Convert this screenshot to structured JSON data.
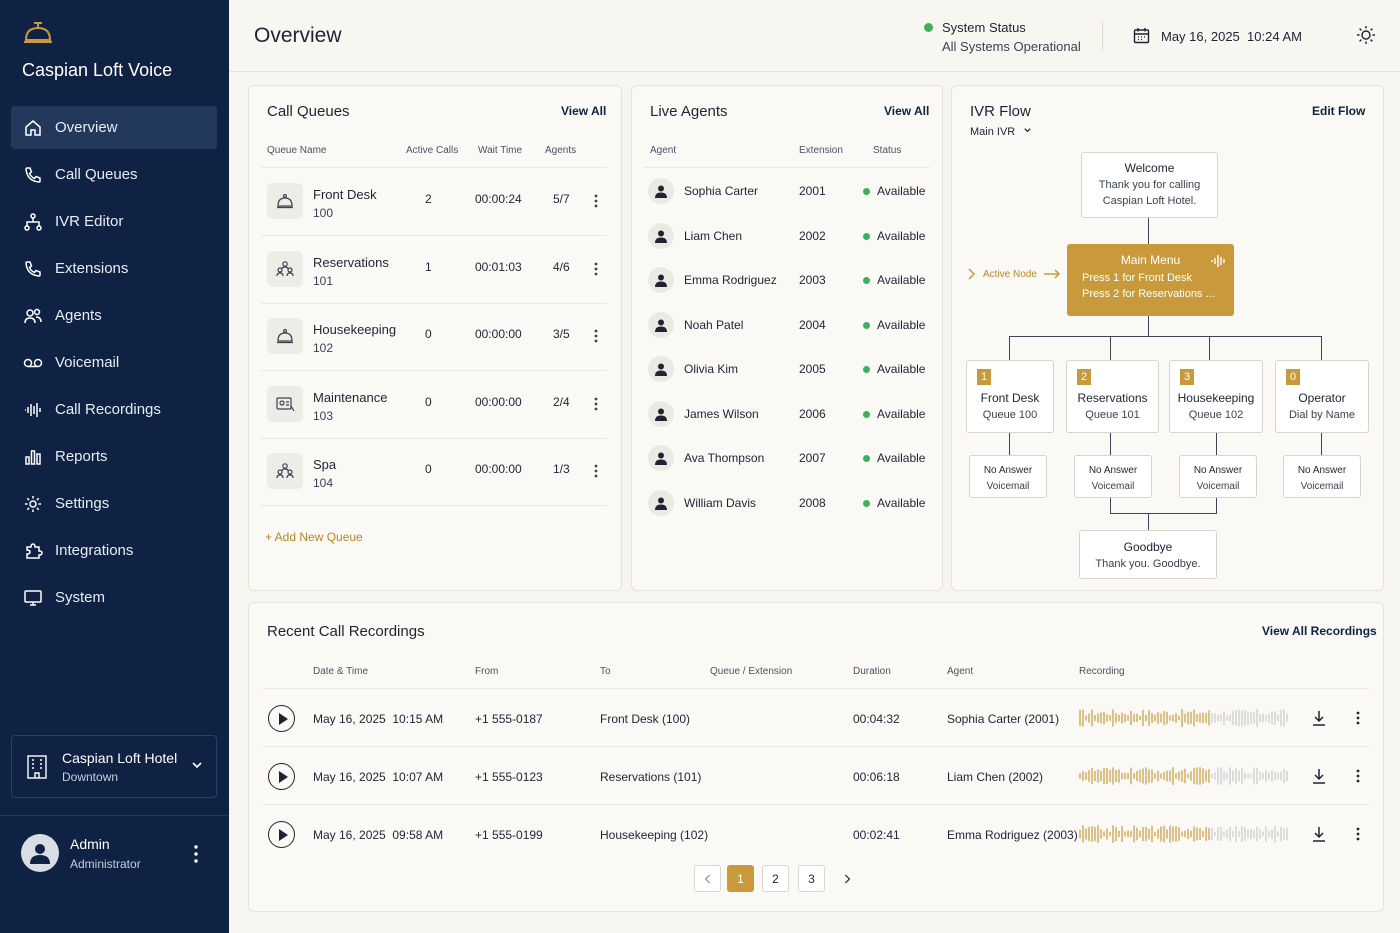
{
  "app": {
    "brand": "Caspian Loft Voice"
  },
  "nav": [
    {
      "label": "Overview",
      "icon": "home-icon",
      "active": true
    },
    {
      "label": "Call Queues",
      "icon": "phone-icon"
    },
    {
      "label": "IVR Editor",
      "icon": "flow-icon"
    },
    {
      "label": "Extensions",
      "icon": "phone-icon"
    },
    {
      "label": "Agents",
      "icon": "users-icon"
    },
    {
      "label": "Voicemail",
      "icon": "voicemail-icon"
    },
    {
      "label": "Call Recordings",
      "icon": "waveform-icon"
    },
    {
      "label": "Reports",
      "icon": "bar-chart-icon"
    },
    {
      "label": "Settings",
      "icon": "gear-icon"
    },
    {
      "label": "Integrations",
      "icon": "puzzle-icon"
    },
    {
      "label": "System",
      "icon": "monitor-icon"
    }
  ],
  "hotel": {
    "name": "Caspian Loft Hotel",
    "location": "Downtown"
  },
  "user": {
    "name": "Admin",
    "role": "Administrator"
  },
  "header": {
    "title": "Overview",
    "status_title": "System Status",
    "status_text": "All Systems Operational",
    "date": "May 16, 2025",
    "time": "10:24 AM"
  },
  "queues": {
    "title": "Call Queues",
    "view_all": "View All",
    "columns": [
      "Queue Name",
      "Active Calls",
      "Wait Time",
      "Agents"
    ],
    "rows": [
      {
        "name": "Front Desk",
        "number": "100",
        "active": "2",
        "wait": "00:00:24",
        "agents": "5/7",
        "icon": "bell-icon"
      },
      {
        "name": "Reservations",
        "number": "101",
        "active": "1",
        "wait": "00:01:03",
        "agents": "4/6",
        "icon": "group-icon"
      },
      {
        "name": "Housekeeping",
        "number": "102",
        "active": "0",
        "wait": "00:00:00",
        "agents": "3/5",
        "icon": "bell-icon"
      },
      {
        "name": "Maintenance",
        "number": "103",
        "active": "0",
        "wait": "00:00:00",
        "agents": "2/4",
        "icon": "tools-icon"
      },
      {
        "name": "Spa",
        "number": "104",
        "active": "0",
        "wait": "00:00:00",
        "agents": "1/3",
        "icon": "group-icon"
      }
    ],
    "add_label": "+ Add New Queue"
  },
  "agents": {
    "title": "Live Agents",
    "view_all": "View All",
    "columns": [
      "Agent",
      "Extension",
      "Status"
    ],
    "rows": [
      {
        "name": "Sophia Carter",
        "ext": "2001",
        "status": "Available"
      },
      {
        "name": "Liam Chen",
        "ext": "2002",
        "status": "Available"
      },
      {
        "name": "Emma Rodriguez",
        "ext": "2003",
        "status": "Available"
      },
      {
        "name": "Noah Patel",
        "ext": "2004",
        "status": "Available"
      },
      {
        "name": "Olivia Kim",
        "ext": "2005",
        "status": "Available"
      },
      {
        "name": "James Wilson",
        "ext": "2006",
        "status": "Available"
      },
      {
        "name": "Ava Thompson",
        "ext": "2007",
        "status": "Available"
      },
      {
        "name": "William Davis",
        "ext": "2008",
        "status": "Available"
      }
    ]
  },
  "ivr": {
    "title": "IVR Flow",
    "edit": "Edit Flow",
    "selector": "Main IVR",
    "welcome": {
      "title": "Welcome",
      "line1": "Thank you for calling",
      "line2": "Caspian Loft Hotel."
    },
    "active_node": "Active Node",
    "main_menu": {
      "title": "Main Menu",
      "line1": "Press 1 for Front Desk",
      "line2": "Press 2 for Reservations ..."
    },
    "options": [
      {
        "key": "1",
        "title": "Front Desk",
        "sub": "Queue 100"
      },
      {
        "key": "2",
        "title": "Reservations",
        "sub": "Queue 101"
      },
      {
        "key": "3",
        "title": "Housekeeping",
        "sub": "Queue 102"
      },
      {
        "key": "0",
        "title": "Operator",
        "sub": "Dial by Name"
      }
    ],
    "fallback": {
      "title": "No Answer",
      "sub": "Voicemail"
    },
    "goodbye": {
      "title": "Goodbye",
      "line1": "Thank you. Goodbye."
    }
  },
  "recordings": {
    "title": "Recent Call Recordings",
    "view_all": "View All Recordings",
    "columns": [
      "Date & Time",
      "From",
      "To",
      "Queue / Extension",
      "Duration",
      "Agent",
      "Recording"
    ],
    "rows": [
      {
        "datetime": "May 16, 2025  10:15 AM",
        "from": "+1 555-0187",
        "to": "Front Desk (100)",
        "duration": "00:04:32",
        "agent": "Sophia Carter (2001)"
      },
      {
        "datetime": "May 16, 2025  10:07 AM",
        "from": "+1 555-0123",
        "to": "Reservations (101)",
        "duration": "00:06:18",
        "agent": "Liam Chen (2002)"
      },
      {
        "datetime": "May 16, 2025  09:58 AM",
        "from": "+1 555-0199",
        "to": "Housekeeping (102)",
        "duration": "00:02:41",
        "agent": "Emma Rodriguez (2003)"
      }
    ],
    "pages": [
      "1",
      "2",
      "3"
    ],
    "current_page": "1"
  },
  "colors": {
    "navy": "#0f2244",
    "gold": "#c89a3c",
    "green": "#3bb15b"
  }
}
